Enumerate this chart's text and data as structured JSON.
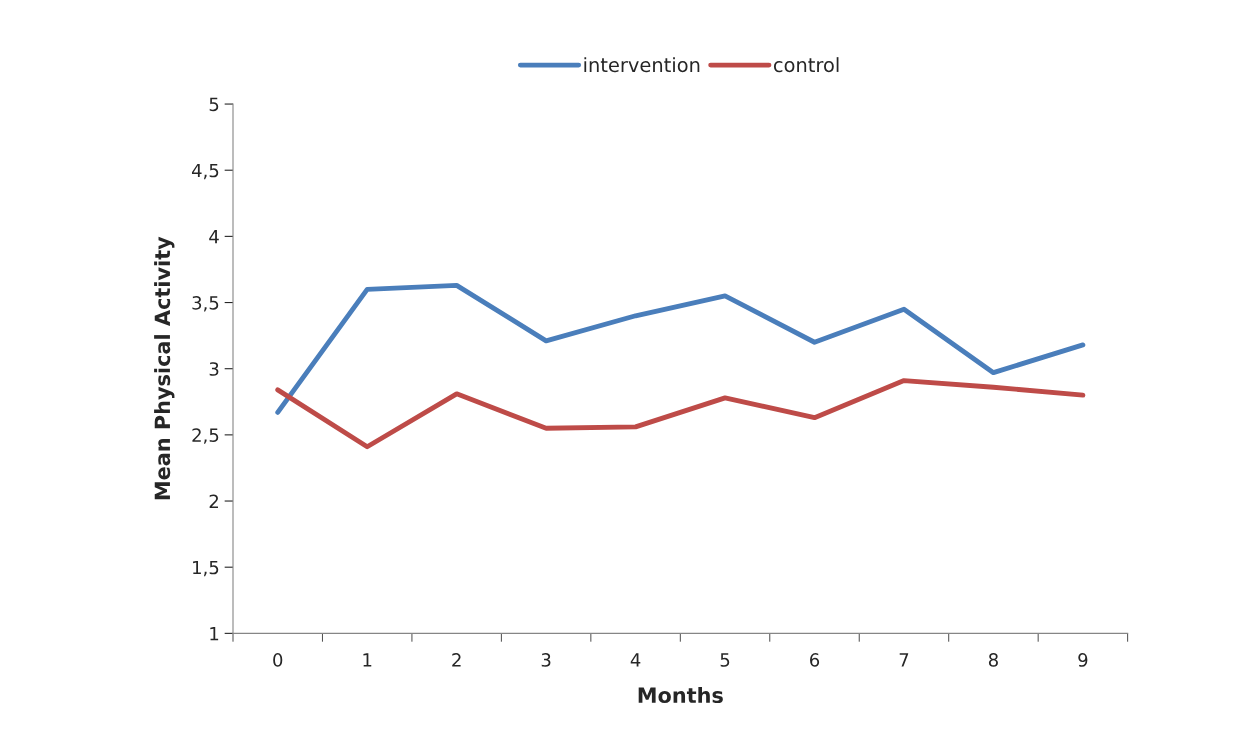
{
  "chart_data": {
    "type": "line",
    "xlabel": "Months",
    "ylabel": "Mean Physical Activity",
    "categories": [
      "0",
      "1",
      "2",
      "3",
      "4",
      "5",
      "6",
      "7",
      "8",
      "9"
    ],
    "series": [
      {
        "name": "intervention",
        "color": "#4a7ebb",
        "values": [
          2.67,
          3.6,
          3.63,
          3.21,
          3.4,
          3.55,
          3.2,
          3.45,
          2.97,
          3.18
        ]
      },
      {
        "name": "control",
        "color": "#be4b48",
        "values": [
          2.84,
          2.41,
          2.81,
          2.55,
          2.56,
          2.78,
          2.63,
          2.91,
          2.86,
          2.8
        ]
      }
    ],
    "ylim": [
      1,
      5
    ],
    "yticks": [
      1,
      {
        "value": 1.5,
        "label": "1,5"
      },
      2,
      {
        "value": 2.5,
        "label": "2,5"
      },
      3,
      {
        "value": 3.5,
        "label": "3,5"
      },
      4,
      {
        "value": 4.5,
        "label": "4,5"
      },
      5
    ],
    "grid": false,
    "legend": "top",
    "marker": "none",
    "line_style": "solid"
  }
}
